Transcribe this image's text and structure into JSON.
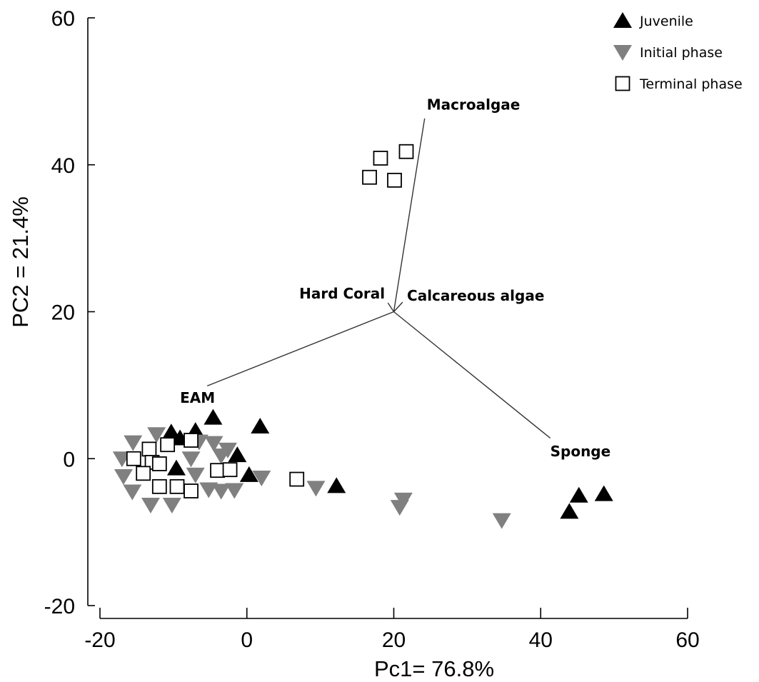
{
  "chart_data": {
    "type": "scatter",
    "title": "",
    "xlabel": "Pc1= 76.8%",
    "ylabel": "PC2 = 21.4%",
    "xlim": [
      -20,
      60
    ],
    "ylim": [
      -20,
      60
    ],
    "x_ticks": [
      -20,
      0,
      20,
      40,
      60
    ],
    "y_ticks": [
      -20,
      0,
      20,
      40,
      60
    ],
    "grid": false,
    "legend_position": "top-right",
    "series": [
      {
        "name": "Juvenile",
        "marker": "triangle-up",
        "color": "#000000",
        "points": [
          {
            "x": -10.3,
            "y": 3.6
          },
          {
            "x": -9.1,
            "y": 2.8
          },
          {
            "x": -7.0,
            "y": 3.8
          },
          {
            "x": -4.6,
            "y": 5.6
          },
          {
            "x": 1.8,
            "y": 4.4
          },
          {
            "x": -1.3,
            "y": 0.5
          },
          {
            "x": 0.3,
            "y": -2.2
          },
          {
            "x": -9.6,
            "y": -1.3
          },
          {
            "x": 12.2,
            "y": -3.7
          },
          {
            "x": 45.2,
            "y": -5.0
          },
          {
            "x": 48.6,
            "y": -4.8
          },
          {
            "x": 43.9,
            "y": -7.2
          }
        ]
      },
      {
        "name": "Initial phase",
        "marker": "triangle-down",
        "color": "#808080",
        "points": [
          {
            "x": -17.0,
            "y": 0.0
          },
          {
            "x": -15.5,
            "y": 2.2
          },
          {
            "x": -12.3,
            "y": 3.3
          },
          {
            "x": -7.6,
            "y": 0.0
          },
          {
            "x": -6.5,
            "y": 2.3
          },
          {
            "x": -4.5,
            "y": 2.1
          },
          {
            "x": -3.5,
            "y": 0.4
          },
          {
            "x": -2.6,
            "y": 1.2
          },
          {
            "x": -16.8,
            "y": -2.4
          },
          {
            "x": -15.6,
            "y": -4.5
          },
          {
            "x": -13.1,
            "y": -6.3
          },
          {
            "x": -10.2,
            "y": -6.3
          },
          {
            "x": -7.0,
            "y": -2.2
          },
          {
            "x": -5.2,
            "y": -4.2
          },
          {
            "x": -3.5,
            "y": -4.4
          },
          {
            "x": -1.7,
            "y": -4.3
          },
          {
            "x": 2.0,
            "y": -2.6
          },
          {
            "x": 9.4,
            "y": -4.0
          },
          {
            "x": 21.3,
            "y": -5.6
          },
          {
            "x": 20.8,
            "y": -6.6
          },
          {
            "x": 34.7,
            "y": -8.4
          }
        ]
      },
      {
        "name": "Terminal phase",
        "marker": "square-open",
        "color": "#000000",
        "points": [
          {
            "x": -15.4,
            "y": 0.0
          },
          {
            "x": -13.3,
            "y": 1.3
          },
          {
            "x": -10.8,
            "y": 1.9
          },
          {
            "x": -7.6,
            "y": 2.5
          },
          {
            "x": -12.9,
            "y": -0.5
          },
          {
            "x": -11.9,
            "y": -0.7
          },
          {
            "x": -14.1,
            "y": -2.0
          },
          {
            "x": -11.9,
            "y": -3.8
          },
          {
            "x": -9.5,
            "y": -3.8
          },
          {
            "x": -7.6,
            "y": -4.4
          },
          {
            "x": -4.0,
            "y": -1.6
          },
          {
            "x": -2.3,
            "y": -1.5
          },
          {
            "x": 6.8,
            "y": -2.8
          },
          {
            "x": 16.7,
            "y": 38.3
          },
          {
            "x": 18.2,
            "y": 40.9
          },
          {
            "x": 20.1,
            "y": 37.9
          },
          {
            "x": 21.7,
            "y": 41.8
          }
        ]
      }
    ],
    "vectors": {
      "origin": {
        "x": 20.0,
        "y": 20.0
      },
      "items": [
        {
          "label": "Macroalgae",
          "end": {
            "x": 24.2,
            "y": 46.3
          },
          "label_at": {
            "x": 24.5,
            "y": 47.5
          },
          "anchor": "start"
        },
        {
          "label": "Hard Coral",
          "end": {
            "x": 19.2,
            "y": 21.2
          },
          "label_at": {
            "x": 18.8,
            "y": 21.8
          },
          "anchor": "end"
        },
        {
          "label": "Calcareous algae",
          "end": {
            "x": 21.2,
            "y": 21.3
          },
          "label_at": {
            "x": 21.8,
            "y": 21.5
          },
          "anchor": "start"
        },
        {
          "label": "EAM",
          "end": {
            "x": -5.4,
            "y": 9.9
          },
          "label_at": {
            "x": -9.1,
            "y": 7.6
          },
          "anchor": "start"
        },
        {
          "label": "Sponge",
          "end": {
            "x": 41.3,
            "y": 2.8
          },
          "label_at": {
            "x": 41.3,
            "y": 0.3
          },
          "anchor": "start"
        }
      ]
    }
  }
}
